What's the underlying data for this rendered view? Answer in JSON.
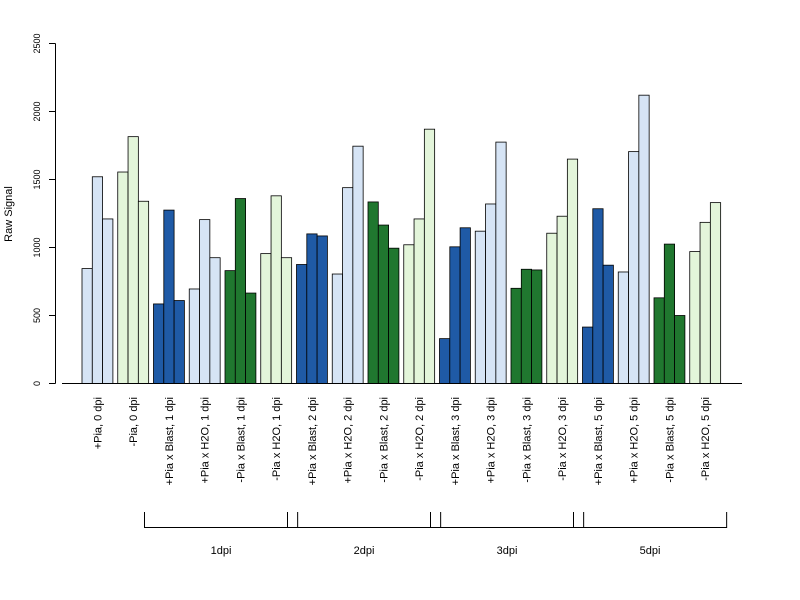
{
  "chart_data": {
    "type": "bar",
    "ylabel": "Raw Signal",
    "ylim": [
      0,
      2500
    ],
    "yticks": [
      0,
      500,
      1000,
      1500,
      2000,
      2500
    ],
    "colors": {
      "dark_blue": "#1f5aa6",
      "light_blue": "#d6e4f5",
      "dark_green": "#20772f",
      "light_green": "#e3f5da",
      "stroke": "#000000"
    },
    "groups": [
      {
        "label": "+Pia, 0 dpi",
        "color": "light_blue",
        "values": [
          845,
          1520,
          1210
        ]
      },
      {
        "label": "-Pia, 0 dpi",
        "color": "light_green",
        "values": [
          1555,
          1815,
          1340
        ]
      },
      {
        "label": "+Pia x Blast, 1 dpi",
        "color": "dark_blue",
        "values": [
          585,
          1275,
          610
        ]
      },
      {
        "label": "+Pia x H2O, 1 dpi",
        "color": "light_blue",
        "values": [
          695,
          1205,
          925
        ]
      },
      {
        "label": "-Pia x Blast, 1 dpi",
        "color": "dark_green",
        "values": [
          830,
          1360,
          665
        ]
      },
      {
        "label": "-Pia x H2O, 1 dpi",
        "color": "light_green",
        "values": [
          955,
          1380,
          925
        ]
      },
      {
        "label": "+Pia x Blast, 2 dpi",
        "color": "dark_blue",
        "values": [
          875,
          1100,
          1085
        ]
      },
      {
        "label": "+Pia x H2O, 2 dpi",
        "color": "light_blue",
        "values": [
          805,
          1440,
          1745
        ]
      },
      {
        "label": "-Pia x Blast, 2 dpi",
        "color": "dark_green",
        "values": [
          1335,
          1165,
          995
        ]
      },
      {
        "label": "-Pia x H2O, 2 dpi",
        "color": "light_green",
        "values": [
          1020,
          1210,
          1870
        ]
      },
      {
        "label": "+Pia x Blast, 3 dpi",
        "color": "dark_blue",
        "values": [
          330,
          1005,
          1145
        ]
      },
      {
        "label": "+Pia x H2O, 3 dpi",
        "color": "light_blue",
        "values": [
          1120,
          1320,
          1775
        ]
      },
      {
        "label": "-Pia x Blast, 3 dpi",
        "color": "dark_green",
        "values": [
          700,
          840,
          835
        ]
      },
      {
        "label": "-Pia x H2O, 3 dpi",
        "color": "light_green",
        "values": [
          1105,
          1230,
          1650
        ]
      },
      {
        "label": "+Pia x Blast, 5 dpi",
        "color": "dark_blue",
        "values": [
          415,
          1285,
          870
        ]
      },
      {
        "label": "+Pia x H2O, 5 dpi",
        "color": "light_blue",
        "values": [
          820,
          1705,
          2120
        ]
      },
      {
        "label": "-Pia x Blast, 5 dpi",
        "color": "dark_green",
        "values": [
          630,
          1025,
          500
        ]
      },
      {
        "label": "-Pia x H2O, 5 dpi",
        "color": "light_green",
        "values": [
          970,
          1185,
          1330
        ]
      }
    ],
    "brackets": [
      {
        "label": "1dpi",
        "from_group": 2,
        "to_group": 5
      },
      {
        "label": "2dpi",
        "from_group": 6,
        "to_group": 9
      },
      {
        "label": "3dpi",
        "from_group": 10,
        "to_group": 13
      },
      {
        "label": "5dpi",
        "from_group": 14,
        "to_group": 17
      }
    ]
  }
}
